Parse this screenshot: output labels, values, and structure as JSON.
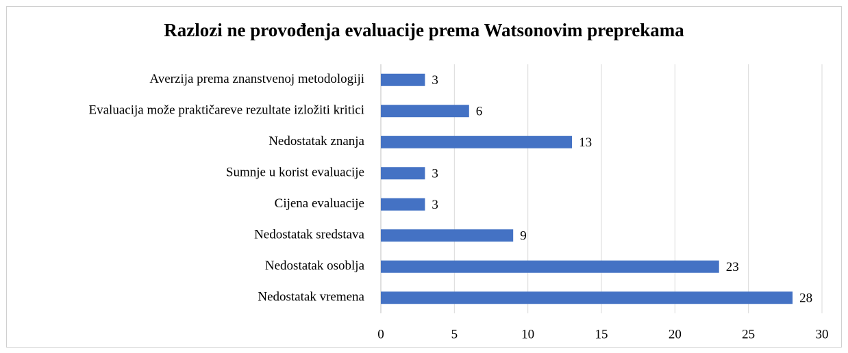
{
  "chart_data": {
    "type": "bar",
    "orientation": "horizontal",
    "title": "Razlozi ne provođenja evaluacije prema Watsonovim preprekama",
    "categories": [
      "Averzija prema znanstvenoj metodologiji",
      "Evaluacija može praktičareve rezultate izložiti kritici",
      "Nedostatak znanja",
      "Sumnje u korist evaluacije",
      "Cijena evaluacije",
      "Nedostatak sredstava",
      "Nedostatak osoblja",
      "Nedostatak vremena"
    ],
    "values": [
      3,
      6,
      13,
      3,
      3,
      9,
      23,
      28
    ],
    "color": "#4472c4",
    "xlim": [
      0,
      30
    ],
    "xticks": [
      0,
      5,
      10,
      15,
      20,
      25,
      30
    ],
    "grid": true
  }
}
